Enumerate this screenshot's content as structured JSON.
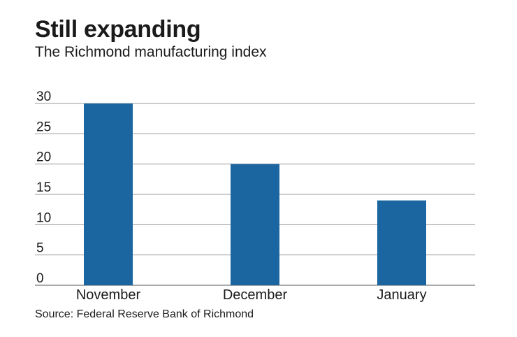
{
  "header": {
    "title": "Still expanding",
    "subtitle": "The Richmond manufacturing index"
  },
  "footer": {
    "source": "Source: Federal Reserve Bank of Richmond"
  },
  "colors": {
    "bar": "#1b66a0",
    "grid": "#9a9a9a",
    "axis": "#555555"
  },
  "chart_data": {
    "type": "bar",
    "title": "Still expanding",
    "subtitle": "The Richmond manufacturing index",
    "categories": [
      "November",
      "December",
      "January"
    ],
    "values": [
      30,
      20,
      14
    ],
    "ylim": [
      0,
      30
    ],
    "yticks": [
      0,
      5,
      10,
      15,
      20,
      25,
      30
    ],
    "grid": true,
    "legend": "none"
  }
}
